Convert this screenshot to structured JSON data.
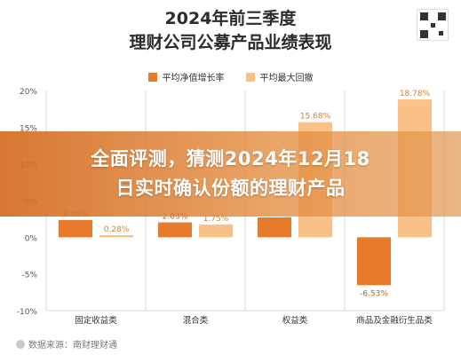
{
  "header": {
    "title_line1": "2024年前三季度",
    "title_line2": "理财公司公募产品业绩表现"
  },
  "banner": {
    "line1": "全面评测，猜测2024年12月18",
    "line2": "日实时确认份额的理财产品"
  },
  "source": {
    "text": "数据来源：南财理财通"
  },
  "colors": {
    "series_a": "#e87a2c",
    "series_b": "#f9c088",
    "grid": "#d8d8d8"
  },
  "chart_data": {
    "type": "bar",
    "categories": [
      "固定收益类",
      "混合类",
      "权益类",
      "商品及金融衍生品类"
    ],
    "series": [
      {
        "name": "平均净值增长率",
        "values": [
          2.36,
          2.03,
          2.7,
          -6.53
        ],
        "labels": [
          "2.36%",
          "2.03%",
          "",
          "-6.53%"
        ]
      },
      {
        "name": "平均最大回撤",
        "values": [
          0.28,
          1.75,
          15.68,
          18.78
        ],
        "labels": [
          "0.28%",
          "1.75%",
          "15.68%",
          "18.78%"
        ]
      }
    ],
    "ylim": [
      -10,
      20
    ],
    "yticks": [
      -10,
      -5,
      0,
      5,
      10,
      15,
      20
    ],
    "ytick_labels": [
      "-10%",
      "-5%",
      "0%",
      "5%",
      "10%",
      "15%",
      "20%"
    ],
    "legend_position": "top-center",
    "grid": "vertical"
  }
}
